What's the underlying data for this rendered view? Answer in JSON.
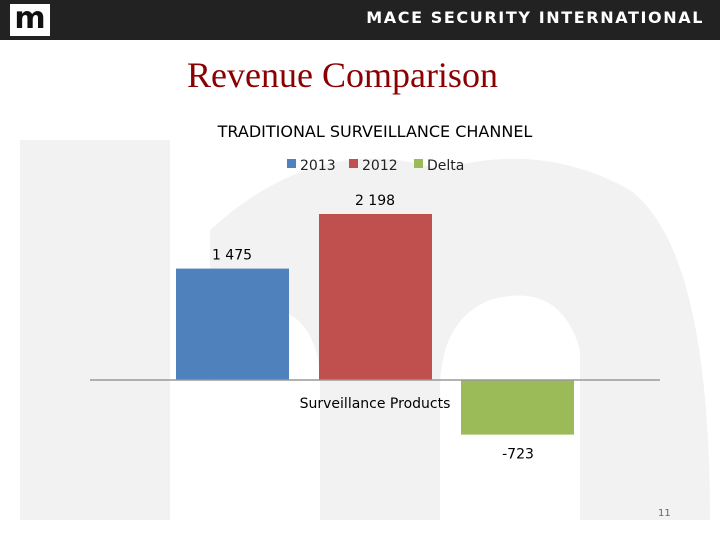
{
  "header": {
    "logo_letter": "m",
    "brand": "MACE SECURITY INTERNATIONAL"
  },
  "slide": {
    "title": "Revenue Comparison",
    "page_number": "11"
  },
  "colors": {
    "header_bg": "#222222",
    "title": "#8b0000",
    "series_2013": "#4f81bd",
    "series_2012": "#c0504d",
    "series_delta": "#9bbb59"
  },
  "chart_data": {
    "type": "bar",
    "title": "TRADITIONAL SURVEILLANCE  CHANNEL",
    "categories": [
      "Surveillance Products"
    ],
    "series": [
      {
        "name": "2013",
        "values": [
          1475
        ],
        "label": "1 475",
        "color": "#4f81bd"
      },
      {
        "name": "2012",
        "values": [
          2198
        ],
        "label": "2 198",
        "color": "#c0504d"
      },
      {
        "name": "Delta",
        "values": [
          -723
        ],
        "label": "-723",
        "color": "#9bbb59"
      }
    ],
    "legend": "top",
    "grid": false,
    "xlabel": "",
    "ylabel": ""
  }
}
